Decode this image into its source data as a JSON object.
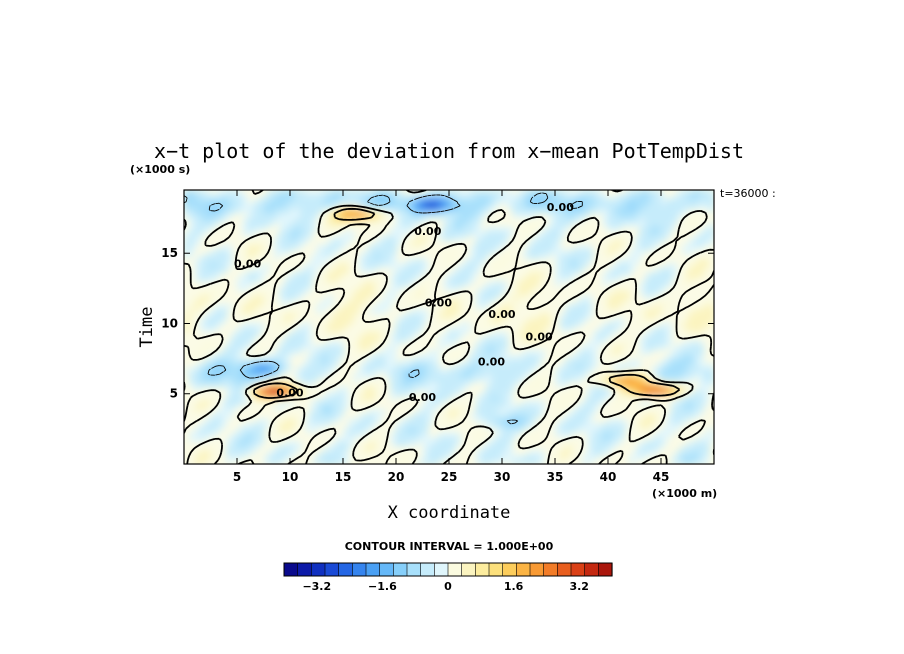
{
  "chart_data": {
    "type": "heatmap",
    "title": "x−t plot of the deviation from x−mean PotTempDist",
    "xlabel": "X coordinate",
    "ylabel": "Time",
    "x_unit": "(×1000 m)",
    "y_unit": "(×1000 s)",
    "time_stamp": "t=36000 :",
    "xlim": [
      0,
      50
    ],
    "ylim": [
      0,
      19.5
    ],
    "x_ticks": [
      5,
      10,
      15,
      20,
      25,
      30,
      35,
      40,
      45
    ],
    "y_ticks": [
      5,
      10,
      15
    ],
    "contour_interval_label": "CONTOUR INTERVAL = 1.000E+00",
    "contour_label": "0.00",
    "colorbar": {
      "min": -4.0,
      "max": 4.0,
      "step": 0.4,
      "tick_values": [
        -3.2,
        -1.6,
        0,
        1.6,
        3.2
      ],
      "tick_labels": [
        "−3.2",
        "−1.6",
        "0",
        "1.6",
        "3.2"
      ],
      "colors": [
        "#0a0a8c",
        "#0c1aa8",
        "#1030c0",
        "#1a4ad6",
        "#2466e4",
        "#3584ee",
        "#4aa0f4",
        "#65b8f8",
        "#86cffa",
        "#a8e0fb",
        "#c6ecfb",
        "#e0f6fc",
        "#fbfbe0",
        "#fbf4c0",
        "#fcec9e",
        "#fce07c",
        "#fccd5c",
        "#fbb444",
        "#f89a34",
        "#f27c28",
        "#e85e1e",
        "#da4016",
        "#c42810",
        "#aa160c"
      ]
    },
    "features": [
      {
        "x": 8.6,
        "t": 5.2,
        "value": 3.6
      },
      {
        "x": 16.5,
        "t": 17.8,
        "value": 2.8
      },
      {
        "x": 44.5,
        "t": 5.3,
        "value": 3.4
      },
      {
        "x": 41.5,
        "t": 6.0,
        "value": 2.6
      },
      {
        "x": 7.5,
        "t": 6.9,
        "value": -1.4
      },
      {
        "x": 23.5,
        "t": 18.5,
        "value": -2.2
      },
      {
        "x": 30.0,
        "t": 3.0,
        "value": -0.8
      }
    ]
  }
}
